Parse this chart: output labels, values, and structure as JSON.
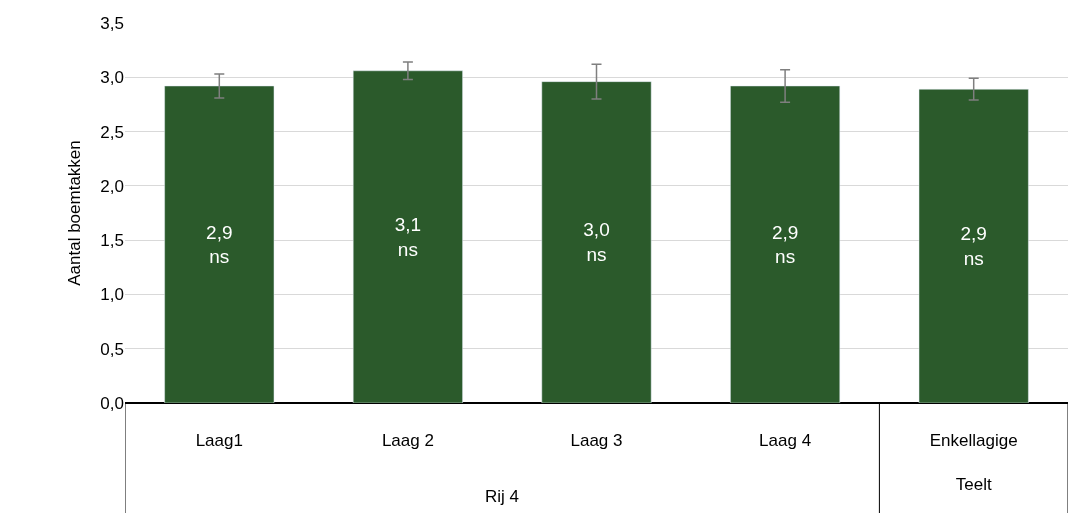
{
  "chart_data": {
    "type": "bar",
    "ylabel": "Aantal boemtakken",
    "categories": [
      "Laag1",
      "Laag 2",
      "Laag 3",
      "Laag 4",
      "Enkellagige Teelt"
    ],
    "values": [
      2.92,
      3.06,
      2.96,
      2.92,
      2.89
    ],
    "errors": [
      0.11,
      0.08,
      0.16,
      0.15,
      0.1
    ],
    "value_labels": [
      "2,9\nns",
      "3,1\nns",
      "3,0\nns",
      "2,9\nns",
      "2,9\nns"
    ],
    "color": "#2b5a2b",
    "ylim": [
      0,
      3.5
    ],
    "yticks": [
      {
        "value": 0,
        "label": "0,0"
      },
      {
        "value": 0.5,
        "label": "0,5"
      },
      {
        "value": 1,
        "label": "1,0"
      },
      {
        "value": 1.5,
        "label": "1,5"
      },
      {
        "value": 2,
        "label": "2,0"
      },
      {
        "value": 2.5,
        "label": "2,5"
      },
      {
        "value": 3,
        "label": "3,0"
      },
      {
        "value": 3.5,
        "label": "3,5"
      }
    ],
    "annotations": [
      "Rij 4"
    ],
    "grid": "y"
  }
}
